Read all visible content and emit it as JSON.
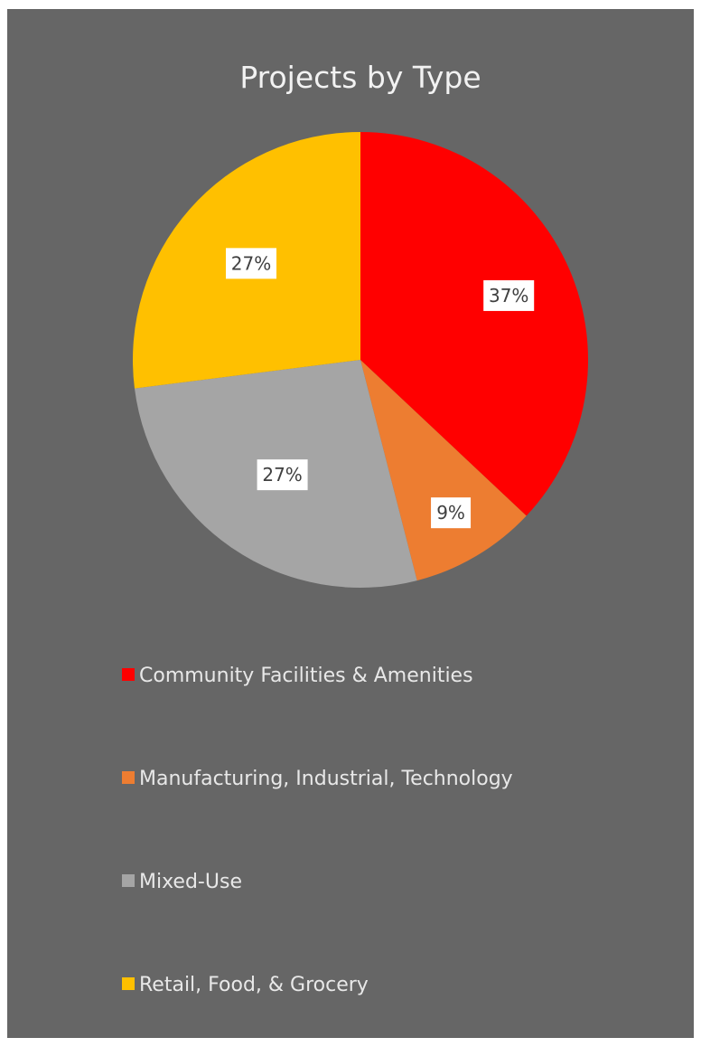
{
  "chart_data": {
    "type": "pie",
    "title": "Projects by Type",
    "categories": [
      "Community Facilities & Amenities",
      "Manufacturing, Industrial, Technology",
      "Mixed-Use",
      "Retail, Food, & Grocery"
    ],
    "values": [
      37,
      9,
      27,
      27
    ],
    "labels": [
      "37%",
      "9%",
      "27%",
      "27%"
    ],
    "colors": [
      "#ff0000",
      "#ed7d31",
      "#a5a5a5",
      "#ffc000"
    ],
    "start_angle_deg": 0,
    "direction": "clockwise",
    "legend": "bottom",
    "background": "#666666"
  }
}
